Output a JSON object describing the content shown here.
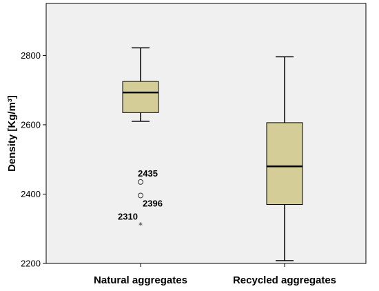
{
  "chart_data": {
    "type": "box",
    "title": "",
    "xlabel": "",
    "ylabel": "Density [Kg/m³]",
    "ylim": [
      2200,
      2950
    ],
    "yticks": [
      2200,
      2400,
      2600,
      2800
    ],
    "grid": false,
    "categories": [
      "Natural aggregates",
      "Recycled aggregates"
    ],
    "boxes": [
      {
        "category": "Natural aggregates",
        "whisker_low": 2610,
        "q1": 2635,
        "median": 2693,
        "q3": 2725,
        "whisker_high": 2822,
        "outliers": [
          {
            "value": 2435,
            "label": "2435",
            "marker": "circle"
          },
          {
            "value": 2396,
            "label": "2396",
            "marker": "circle"
          },
          {
            "value": 2310,
            "label": "2310",
            "marker": "star"
          }
        ]
      },
      {
        "category": "Recycled aggregates",
        "whisker_low": 2208,
        "q1": 2370,
        "median": 2480,
        "q3": 2606,
        "whisker_high": 2796,
        "outliers": []
      }
    ],
    "colors": {
      "plot_background": "#f0f0f0",
      "box_fill": "#d4cd97",
      "line": "#000000"
    }
  }
}
